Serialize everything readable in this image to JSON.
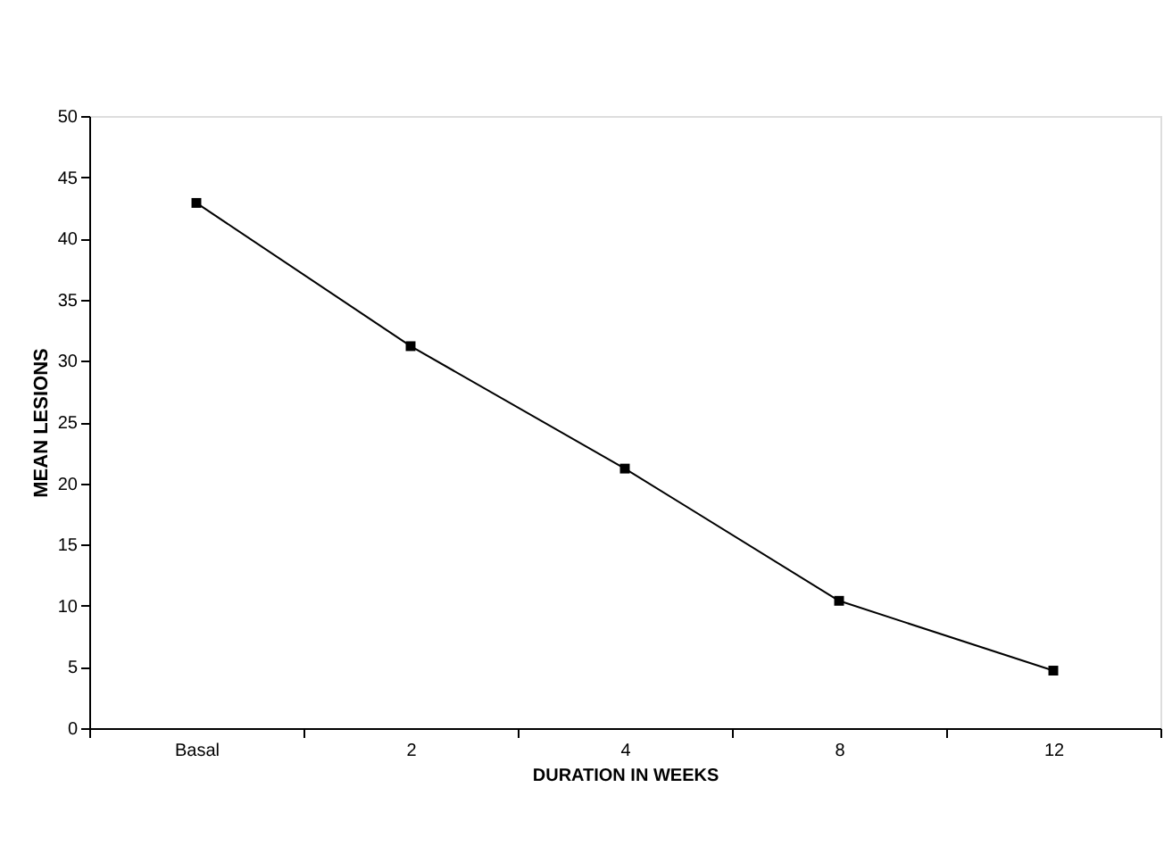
{
  "chart_data": {
    "type": "line",
    "xlabel": "DURATION IN WEEKS",
    "ylabel": "MEAN LESIONS",
    "categories": [
      "Basal",
      "2",
      "4",
      "8",
      "12"
    ],
    "series": [
      {
        "color": "#000000",
        "values": [
          42.9,
          31.2,
          21.2,
          10.4,
          4.7
        ]
      }
    ],
    "ylim": [
      0,
      50
    ],
    "yticks": [
      0,
      5,
      10,
      15,
      20,
      25,
      30,
      35,
      40,
      45,
      50
    ],
    "marker": "square",
    "line_style": "solid",
    "grid": false,
    "legend": false
  }
}
